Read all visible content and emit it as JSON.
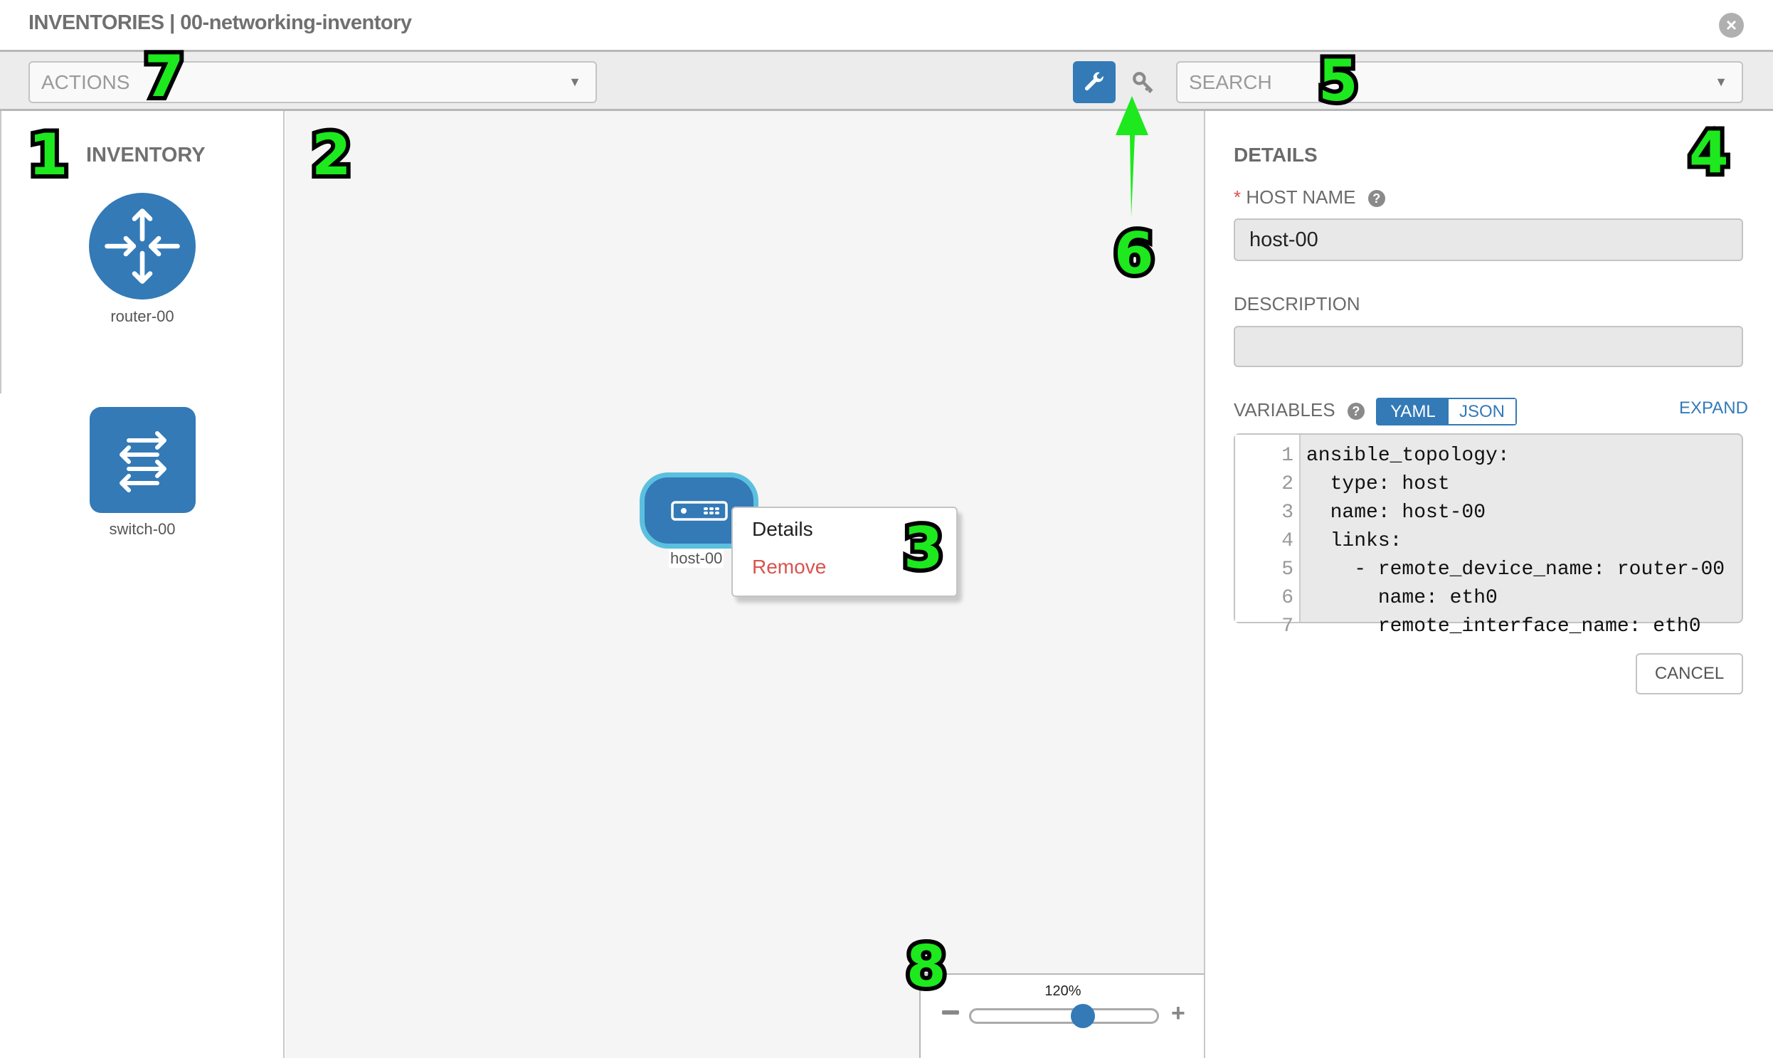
{
  "header": {
    "title": "INVENTORIES | 00-networking-inventory",
    "close_icon": "close-circle-icon"
  },
  "toolbar": {
    "actions_placeholder": "ACTIONS",
    "search_placeholder": "SEARCH",
    "wrench_icon": "wrench-icon",
    "key_icon": "key-icon",
    "accent": "#337ab7"
  },
  "inventory": {
    "title": "INVENTORY",
    "devices": [
      {
        "name": "router-00",
        "type": "router"
      },
      {
        "name": "switch-00",
        "type": "switch"
      }
    ]
  },
  "canvas": {
    "host": {
      "name": "host-00"
    },
    "context_menu": {
      "details": "Details",
      "remove": "Remove"
    },
    "zoom": {
      "label": "120%",
      "minus": "−",
      "plus": "+",
      "level_fraction": 0.6
    }
  },
  "details": {
    "title": "DETAILS",
    "required_mark": "*",
    "host_name_label": "HOST NAME",
    "host_name_value": "host-00",
    "description_label": "DESCRIPTION",
    "description_value": "",
    "variables_label": "VARIABLES",
    "yaml": "YAML",
    "json": "JSON",
    "expand": "EXPAND",
    "help": "?",
    "code_lines": [
      {
        "n": "1",
        "text": "ansible_topology:"
      },
      {
        "n": "2",
        "text": "  type: host"
      },
      {
        "n": "3",
        "text": "  name: host-00"
      },
      {
        "n": "4",
        "text": "  links:"
      },
      {
        "n": "5",
        "text": "    - remote_device_name: router-00"
      },
      {
        "n": "6",
        "text": "      name: eth0"
      },
      {
        "n": "7",
        "text": "      remote_interface_name: eth0"
      }
    ],
    "cancel": "CANCEL"
  },
  "annotations": [
    "1",
    "2",
    "3",
    "4",
    "5",
    "6",
    "7",
    "8"
  ],
  "colors": {
    "primary": "#337ab7",
    "node_border": "#5bc0de",
    "danger": "#d9534f",
    "annotation": "#1ee81e"
  }
}
